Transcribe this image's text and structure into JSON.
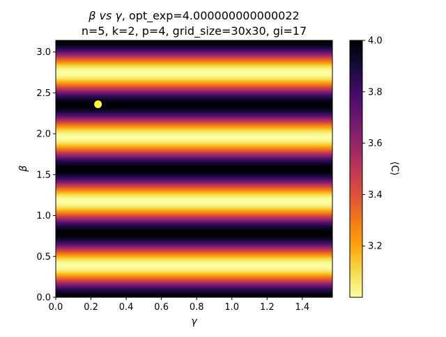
{
  "chart_data": {
    "type": "heatmap",
    "title_line1_greek_y": "β",
    "title_line1_vs": "vs",
    "title_line1_greek_x": "γ",
    "title_line1_rest": ", opt_exp=4.000000000000022",
    "title_line2": "n=5, k=2, p=4, grid_size=30x30, gi=17",
    "xlabel": "γ",
    "ylabel": "β",
    "colorbar_label": "⟨C⟩",
    "colormap": "inferno_r",
    "xlim": [
      0,
      1.5708
    ],
    "ylim": [
      0,
      3.1416
    ],
    "x_ticks": [
      0.0,
      0.2,
      0.4,
      0.6,
      0.8,
      1.0,
      1.2,
      1.4
    ],
    "x_tick_labels": [
      "0.0",
      "0.2",
      "0.4",
      "0.6",
      "0.8",
      "1.0",
      "1.2",
      "1.4"
    ],
    "y_ticks": [
      0.0,
      0.5,
      1.0,
      1.5,
      2.0,
      2.5,
      3.0
    ],
    "y_tick_labels": [
      "0.0",
      "0.5",
      "1.0",
      "1.5",
      "2.0",
      "2.5",
      "3.0"
    ],
    "colorbar_range": [
      3.0,
      4.0
    ],
    "colorbar_ticks": [
      3.2,
      3.4,
      3.6,
      3.8,
      4.0
    ],
    "colorbar_tick_labels": [
      "3.2",
      "3.4",
      "3.6",
      "3.8",
      "4.0"
    ],
    "field": {
      "description": "value depends only on beta: C(beta) = 3.5 + 0.5*cos(8*beta)",
      "mean": 3.5,
      "amplitude": 0.5,
      "beta_frequency": 8
    },
    "optimum_point": {
      "x": 0.24,
      "y": 2.36,
      "color": "#ffff33"
    }
  }
}
